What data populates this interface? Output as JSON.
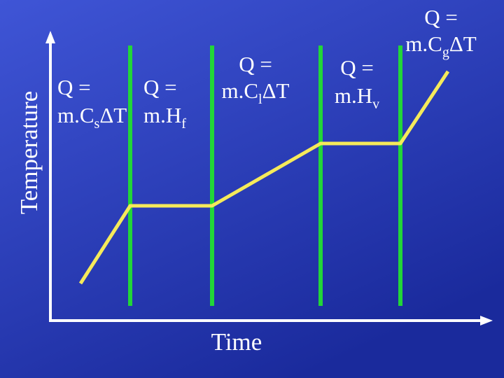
{
  "axes": {
    "y_label": "Temperature",
    "x_label": "Time"
  },
  "regions": [
    {
      "lines": [
        [
          {
            "text": "Q ="
          }
        ],
        [
          {
            "text": "m.C"
          },
          {
            "text": "s",
            "sub": true
          },
          {
            "text": "ΔT"
          }
        ]
      ]
    },
    {
      "lines": [
        [
          {
            "text": "Q ="
          }
        ],
        [
          {
            "text": "m.H"
          },
          {
            "text": "f",
            "sub": true
          }
        ]
      ]
    },
    {
      "lines": [
        [
          {
            "text": "Q ="
          }
        ],
        [
          {
            "text": "m.C"
          },
          {
            "text": "l",
            "sub": true
          },
          {
            "text": "ΔT"
          }
        ]
      ]
    },
    {
      "lines": [
        [
          {
            "text": "Q ="
          }
        ],
        [
          {
            "text": "m.H"
          },
          {
            "text": "v",
            "sub": true
          }
        ]
      ]
    },
    {
      "lines": [
        [
          {
            "text": "Q ="
          }
        ],
        [
          {
            "text": "m.C"
          },
          {
            "text": "g",
            "sub": true
          },
          {
            "text": "ΔT"
          }
        ]
      ]
    }
  ]
}
